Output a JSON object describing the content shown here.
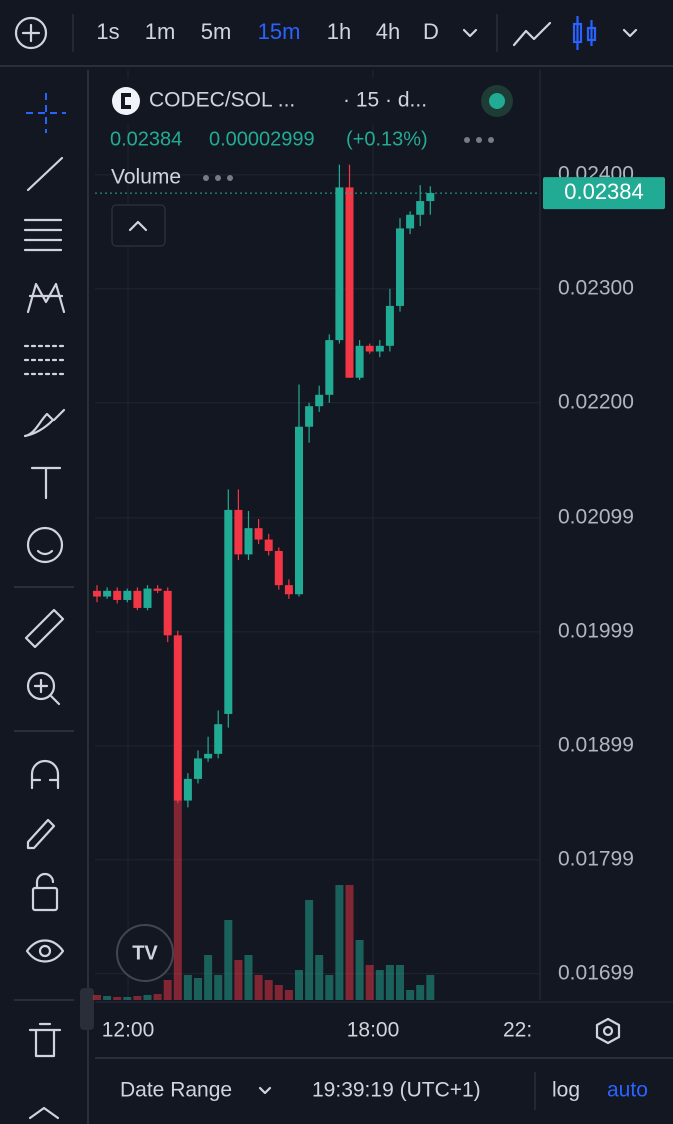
{
  "toolbar": {
    "intervals": [
      "1s",
      "1m",
      "5m",
      "15m",
      "1h",
      "4h",
      "D"
    ],
    "active": 3
  },
  "chart_data": {
    "type": "candlestick",
    "title": "CODEC/SOL ...",
    "subtitle": "· 15 · d...",
    "last_price": 0.02384,
    "change": 2.999e-05,
    "change_pct": {
      "value": 0.13,
      "label": "(+0.13%)"
    },
    "volume_label": "Volume",
    "up_color": "#22ab94",
    "down_color": "#f23645",
    "open": [
      0.02035,
      0.0203,
      0.02035,
      0.02027,
      0.02035,
      0.0202,
      0.02037,
      0.02035,
      0.01996,
      0.01851,
      0.0187,
      0.01888,
      0.01892,
      0.01927,
      0.02106,
      0.02067,
      0.0209,
      0.0208,
      0.0207,
      0.0204,
      0.02032,
      0.02179,
      0.02197,
      0.02207,
      0.02255,
      0.02389,
      0.02222,
      0.0225,
      0.02245,
      0.0225,
      0.02285,
      0.02353,
      0.02365,
      0.02377
    ],
    "high": [
      0.0204,
      0.02038,
      0.02038,
      0.02037,
      0.02038,
      0.0204,
      0.0204,
      0.02038,
      0.02,
      0.01875,
      0.01895,
      0.01907,
      0.0193,
      0.02124,
      0.02124,
      0.02105,
      0.02098,
      0.02085,
      0.02073,
      0.02045,
      0.02216,
      0.022,
      0.02215,
      0.0226,
      0.02409,
      0.02409,
      0.02255,
      0.02252,
      0.02255,
      0.023,
      0.02362,
      0.02368,
      0.02391,
      0.0239
    ],
    "low": [
      0.02025,
      0.02028,
      0.02024,
      0.02025,
      0.02018,
      0.02018,
      0.02033,
      0.0199,
      0.01849,
      0.01845,
      0.01866,
      0.01885,
      0.01888,
      0.01915,
      0.02062,
      0.02062,
      0.02076,
      0.02066,
      0.02036,
      0.02028,
      0.0203,
      0.02165,
      0.02192,
      0.022,
      0.02252,
      0.02222,
      0.0222,
      0.02243,
      0.0224,
      0.02245,
      0.0228,
      0.02348,
      0.02355,
      0.02365
    ],
    "close": [
      0.0203,
      0.02035,
      0.02027,
      0.02035,
      0.0202,
      0.02037,
      0.02035,
      0.01996,
      0.01851,
      0.0187,
      0.01888,
      0.01892,
      0.01918,
      0.02106,
      0.02067,
      0.0209,
      0.0208,
      0.0207,
      0.0204,
      0.02032,
      0.02179,
      0.02197,
      0.02207,
      0.02255,
      0.02389,
      0.02222,
      0.0225,
      0.02245,
      0.0225,
      0.02285,
      0.02353,
      0.02365,
      0.02377,
      0.02384
    ],
    "volume": [
      5,
      4,
      3,
      3,
      4,
      5,
      6,
      20,
      200,
      25,
      22,
      45,
      25,
      80,
      40,
      45,
      25,
      20,
      15,
      10,
      30,
      100,
      45,
      25,
      115,
      115,
      60,
      35,
      30,
      35,
      35,
      10,
      15,
      25
    ],
    "ylim": [
      0.01676,
      0.02492
    ],
    "yticks": [
      {
        "value": 0.024,
        "label": "0.02400"
      },
      {
        "value": 0.023,
        "label": "0.02300"
      },
      {
        "value": 0.022,
        "label": "0.02200"
      },
      0.02099,
      0.01999,
      0.01899,
      0.01799,
      0.01699
    ],
    "xtick_labels": [
      "12:00",
      "18:00",
      "22:"
    ]
  },
  "footer": {
    "date_range": "Date Range",
    "clock": "19:39:19 (UTC+1)",
    "log": "log",
    "auto": "auto"
  }
}
